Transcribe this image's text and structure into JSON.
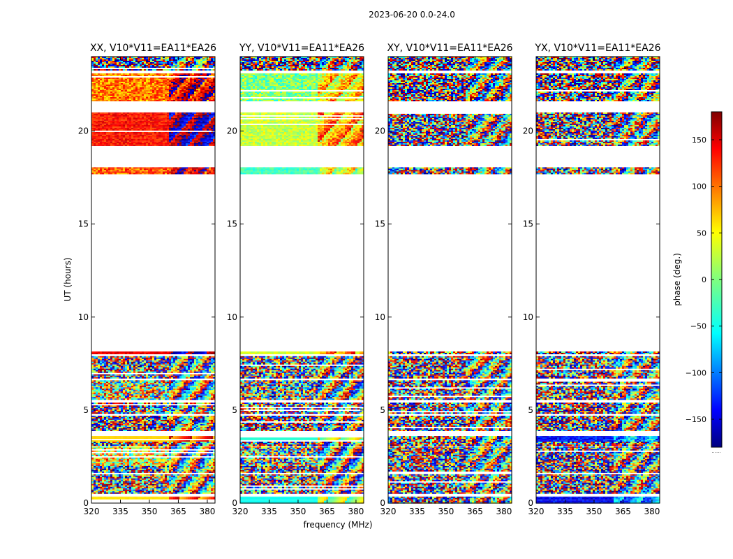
{
  "figure": {
    "suptitle": "2023-06-20 0.0-24.0",
    "xlabel": "frequency (MHz)",
    "ylabel": "UT (hours)",
    "colorbar_label": "phase (deg.)",
    "colorbar_footnote": "......"
  },
  "colors": {
    "jet": [
      "#00007f",
      "#0000ff",
      "#007fff",
      "#00ffff",
      "#7fff7f",
      "#ffff00",
      "#ff7f00",
      "#ff0000",
      "#7f0000"
    ],
    "axis": "#000000",
    "background": "#ffffff"
  },
  "chart_data": [
    {
      "type": "heatmap",
      "title": "XX, V10*V11=EA11*EA26",
      "x_ticks": [
        "320",
        "335",
        "350",
        "365",
        "380"
      ],
      "y_ticks": [
        "0",
        "5",
        "10",
        "15",
        "20"
      ],
      "xlim": [
        320,
        384
      ],
      "ylim": [
        0,
        24
      ],
      "style": {
        "lowBase": 30,
        "lowSpread": 55,
        "lowNoise": 0.55,
        "highBase": 150,
        "highSpread": 120,
        "highNoise": 0.5,
        "seed": 11
      },
      "bands": [
        {
          "t0": 0.0,
          "t1": 0.35,
          "flag": "none",
          "base": 55,
          "spread": 10,
          "noise": 0.05
        },
        {
          "t0": 0.55,
          "t1": 1.55,
          "flag": "none",
          "base": -20,
          "spread": 180,
          "noise": 0.85
        },
        {
          "t0": 1.65,
          "t1": 2.0,
          "flag": "none",
          "base": 0,
          "spread": 180,
          "noise": 0.9
        },
        {
          "t0": 2.05,
          "t1": 3.05,
          "flag": "none",
          "base": 40,
          "spread": 120,
          "noise": 0.6
        },
        {
          "t0": 3.1,
          "t1": 3.3,
          "flag": "none",
          "base": 0,
          "spread": 180,
          "noise": 0.9
        },
        {
          "t0": 3.35,
          "t1": 3.6,
          "flag": "none",
          "base": 60,
          "spread": 8,
          "noise": 0.05
        },
        {
          "t0": 3.9,
          "t1": 4.7,
          "flag": "none",
          "base": 0,
          "spread": 180,
          "noise": 0.95
        },
        {
          "t0": 4.85,
          "t1": 5.4,
          "flag": "none",
          "base": 0,
          "spread": 180,
          "noise": 0.95
        },
        {
          "t0": 5.6,
          "t1": 6.6,
          "flag": "none",
          "base": 20,
          "spread": 150,
          "noise": 0.7
        },
        {
          "t0": 6.7,
          "t1": 7.9,
          "flag": "none",
          "base": 0,
          "spread": 180,
          "noise": 0.9
        },
        {
          "t0": 8.0,
          "t1": 8.15,
          "flag": "none",
          "base": 140,
          "spread": 30,
          "noise": 0.2
        },
        {
          "t0": 17.7,
          "t1": 18.05,
          "flag": "none",
          "base": 100,
          "spread": 60,
          "noise": 0.4
        },
        {
          "t0": 19.2,
          "t1": 21.0,
          "flag": "none",
          "base": 130,
          "spread": 40,
          "noise": 0.3
        },
        {
          "t0": 21.6,
          "t1": 23.1,
          "flag": "none",
          "base": 90,
          "spread": 60,
          "noise": 0.4
        },
        {
          "t0": 23.25,
          "t1": 24.0,
          "flag": "none",
          "base": 0,
          "spread": 180,
          "noise": 0.95
        }
      ]
    },
    {
      "type": "heatmap",
      "title": "YY, V10*V11=EA11*EA26",
      "x_ticks": [
        "320",
        "335",
        "350",
        "365",
        "380"
      ],
      "y_ticks": [
        "0",
        "5",
        "10",
        "15",
        "20"
      ],
      "xlim": [
        320,
        384
      ],
      "ylim": [
        0,
        24
      ],
      "style": {
        "seed": 22
      },
      "bands": [
        {
          "t0": 0.0,
          "t1": 0.35,
          "base": -40,
          "spread": 10,
          "noise": 0.05
        },
        {
          "t0": 0.55,
          "t1": 1.55,
          "base": -10,
          "spread": 160,
          "noise": 0.85
        },
        {
          "t0": 1.65,
          "t1": 2.0,
          "base": 0,
          "spread": 180,
          "noise": 0.9
        },
        {
          "t0": 2.05,
          "t1": 3.05,
          "base": 0,
          "spread": 160,
          "noise": 0.7
        },
        {
          "t0": 3.1,
          "t1": 3.3,
          "base": 0,
          "spread": 180,
          "noise": 0.9
        },
        {
          "t0": 3.35,
          "t1": 3.6,
          "base": -30,
          "spread": 8,
          "noise": 0.05
        },
        {
          "t0": 3.9,
          "t1": 4.7,
          "base": 0,
          "spread": 180,
          "noise": 0.95
        },
        {
          "t0": 4.85,
          "t1": 5.4,
          "base": 0,
          "spread": 180,
          "noise": 0.95
        },
        {
          "t0": 5.6,
          "t1": 6.6,
          "base": 0,
          "spread": 160,
          "noise": 0.8
        },
        {
          "t0": 6.7,
          "t1": 7.9,
          "base": 0,
          "spread": 180,
          "noise": 0.9
        },
        {
          "t0": 8.0,
          "t1": 8.15,
          "base": 30,
          "spread": 30,
          "noise": 0.2
        },
        {
          "t0": 17.7,
          "t1": 18.05,
          "base": -20,
          "spread": 30,
          "noise": 0.3
        },
        {
          "t0": 19.2,
          "t1": 21.0,
          "base": 25,
          "spread": 40,
          "noise": 0.35
        },
        {
          "t0": 21.6,
          "t1": 23.1,
          "base": 0,
          "spread": 60,
          "noise": 0.4
        },
        {
          "t0": 23.25,
          "t1": 24.0,
          "base": 0,
          "spread": 180,
          "noise": 0.95
        }
      ]
    },
    {
      "type": "heatmap",
      "title": "XY, V10*V11=EA11*EA26",
      "x_ticks": [
        "320",
        "335",
        "350",
        "365",
        "380"
      ],
      "y_ticks": [
        "0",
        "5",
        "10",
        "15",
        "20"
      ],
      "xlim": [
        320,
        384
      ],
      "ylim": [
        0,
        24
      ],
      "style": {
        "seed": 33
      },
      "bands": [
        {
          "t0": 0.0,
          "t1": 0.35,
          "base": 0,
          "spread": 180,
          "noise": 0.95
        },
        {
          "t0": 0.55,
          "t1": 1.55,
          "base": 0,
          "spread": 180,
          "noise": 0.95
        },
        {
          "t0": 1.65,
          "t1": 2.0,
          "base": 0,
          "spread": 180,
          "noise": 0.95
        },
        {
          "t0": 2.05,
          "t1": 3.05,
          "base": 0,
          "spread": 180,
          "noise": 0.95
        },
        {
          "t0": 3.1,
          "t1": 3.3,
          "base": 0,
          "spread": 180,
          "noise": 0.95
        },
        {
          "t0": 3.35,
          "t1": 3.6,
          "base": 0,
          "spread": 180,
          "noise": 0.8
        },
        {
          "t0": 3.9,
          "t1": 4.7,
          "base": 0,
          "spread": 180,
          "noise": 0.95
        },
        {
          "t0": 4.85,
          "t1": 5.4,
          "base": 0,
          "spread": 180,
          "noise": 0.95
        },
        {
          "t0": 5.6,
          "t1": 6.6,
          "base": 0,
          "spread": 180,
          "noise": 0.95
        },
        {
          "t0": 6.7,
          "t1": 7.9,
          "base": 0,
          "spread": 180,
          "noise": 0.95
        },
        {
          "t0": 8.0,
          "t1": 8.15,
          "base": 0,
          "spread": 180,
          "noise": 0.9
        },
        {
          "t0": 17.7,
          "t1": 18.05,
          "base": 0,
          "spread": 180,
          "noise": 0.9
        },
        {
          "t0": 19.2,
          "t1": 21.0,
          "base": 0,
          "spread": 180,
          "noise": 0.95
        },
        {
          "t0": 21.6,
          "t1": 23.1,
          "base": 0,
          "spread": 180,
          "noise": 0.95
        },
        {
          "t0": 23.25,
          "t1": 24.0,
          "base": 0,
          "spread": 180,
          "noise": 0.95
        }
      ]
    },
    {
      "type": "heatmap",
      "title": "YX, V10*V11=EA11*EA26",
      "x_ticks": [
        "320",
        "335",
        "350",
        "365",
        "380"
      ],
      "y_ticks": [
        "0",
        "5",
        "10",
        "15",
        "20"
      ],
      "xlim": [
        320,
        384
      ],
      "ylim": [
        0,
        24
      ],
      "style": {
        "seed": 44
      },
      "bands": [
        {
          "t0": 0.0,
          "t1": 0.35,
          "base": -140,
          "spread": 40,
          "noise": 0.3
        },
        {
          "t0": 0.55,
          "t1": 1.55,
          "base": 0,
          "spread": 180,
          "noise": 0.95
        },
        {
          "t0": 1.65,
          "t1": 2.0,
          "base": 0,
          "spread": 180,
          "noise": 0.95
        },
        {
          "t0": 2.05,
          "t1": 3.05,
          "base": 0,
          "spread": 180,
          "noise": 0.95
        },
        {
          "t0": 3.1,
          "t1": 3.3,
          "base": 0,
          "spread": 180,
          "noise": 0.95
        },
        {
          "t0": 3.35,
          "t1": 3.6,
          "base": -130,
          "spread": 40,
          "noise": 0.4
        },
        {
          "t0": 3.9,
          "t1": 4.7,
          "base": 0,
          "spread": 180,
          "noise": 0.95
        },
        {
          "t0": 4.85,
          "t1": 5.4,
          "base": 0,
          "spread": 180,
          "noise": 0.95
        },
        {
          "t0": 5.6,
          "t1": 6.6,
          "base": 0,
          "spread": 180,
          "noise": 0.95
        },
        {
          "t0": 6.7,
          "t1": 7.9,
          "base": 0,
          "spread": 180,
          "noise": 0.95
        },
        {
          "t0": 8.0,
          "t1": 8.15,
          "base": 0,
          "spread": 180,
          "noise": 0.9
        },
        {
          "t0": 17.7,
          "t1": 18.05,
          "base": 0,
          "spread": 180,
          "noise": 0.9
        },
        {
          "t0": 19.2,
          "t1": 21.0,
          "base": 0,
          "spread": 180,
          "noise": 0.95
        },
        {
          "t0": 21.6,
          "t1": 23.1,
          "base": 0,
          "spread": 180,
          "noise": 0.95
        },
        {
          "t0": 23.25,
          "t1": 24.0,
          "base": 0,
          "spread": 180,
          "noise": 0.95
        }
      ]
    }
  ],
  "colorbar": {
    "type": "colorbar",
    "range": [
      -180,
      180
    ],
    "tick_values": [
      150,
      100,
      50,
      0,
      -50,
      -100,
      -150
    ],
    "tick_labels": [
      "150",
      "100",
      "50",
      "0",
      "−50",
      "−100",
      "−150"
    ]
  }
}
